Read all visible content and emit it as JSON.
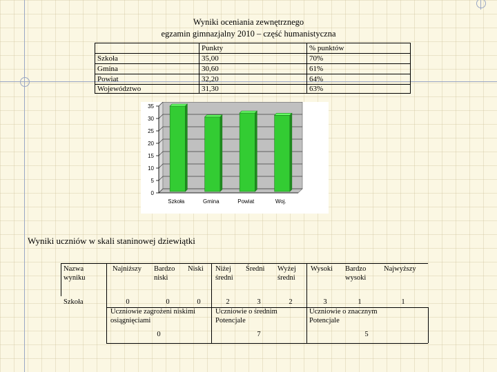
{
  "title_line1": "Wyniki oceniania zewnętrznego",
  "title_line2": "egzamin gimnazjalny 2010 – część humanistyczna",
  "results_table": {
    "headers": [
      "",
      "Punkty",
      "% punktów"
    ],
    "rows": [
      {
        "label": "Szkoła",
        "points": "35,00",
        "percent": "70%"
      },
      {
        "label": "Gmina",
        "points": "30,60",
        "percent": "61%"
      },
      {
        "label": "Powiat",
        "points": "32,20",
        "percent": "64%"
      },
      {
        "label": "Województwo",
        "points": "31,30",
        "percent": "63%"
      }
    ]
  },
  "chart_data": {
    "type": "bar",
    "categories": [
      "Szkoła",
      "Gmina",
      "Powiat",
      "Woj."
    ],
    "values": [
      35.0,
      30.6,
      32.2,
      31.3
    ],
    "yticks": [
      "0",
      "5",
      "10",
      "15",
      "20",
      "25",
      "30",
      "35"
    ],
    "ylim": [
      0,
      35
    ],
    "grid": true,
    "title": "",
    "xlabel": "",
    "ylabel": "",
    "bar_color": "#33cc33",
    "bar_top_color": "#66ff66"
  },
  "staninow_heading": "Wyniki uczniów w skali staninowej dziewiątki",
  "staninow_table": {
    "header_label": "Nazwa wyniku",
    "columns": [
      "Najniższy",
      "Bardzo niski",
      "Niski",
      "Niżej średni",
      "Średni",
      "Wyżej średni",
      "Wysoki",
      "Bardzo wysoki",
      "Najwyższy"
    ],
    "row_label": "Szkoła",
    "values": [
      "0",
      "0",
      "0",
      "2",
      "3",
      "2",
      "3",
      "1",
      "1"
    ],
    "groups": [
      {
        "label": "Uczniowie zagrożeni niskimi osiągnięciami",
        "total": "0"
      },
      {
        "label": "Uczniowie o średnim Potencjale",
        "total": "7"
      },
      {
        "label": "Uczniowie o znacznym Potencjale",
        "total": "5"
      }
    ]
  }
}
